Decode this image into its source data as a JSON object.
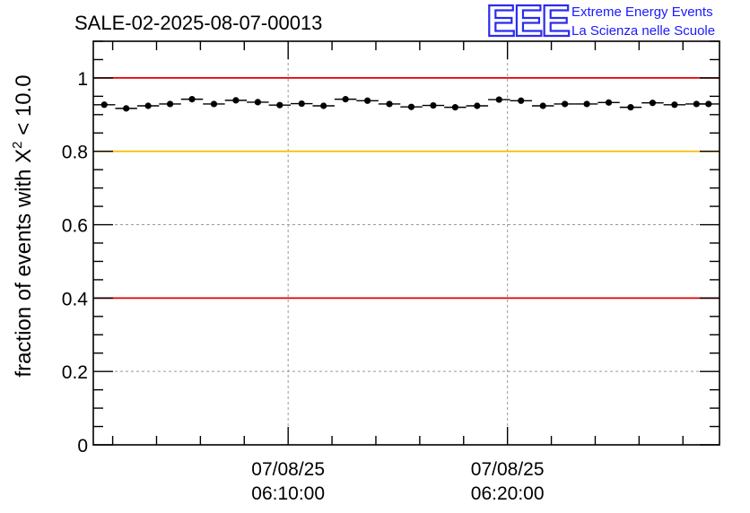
{
  "header": {
    "title": "SALE-02-2025-08-07-00013",
    "logo": {
      "mark": "EEE",
      "line1": "Extreme Energy Events",
      "line2": "La Scienza nelle Scuole",
      "color": "#1a1aff"
    }
  },
  "chart_data": {
    "type": "scatter",
    "title": "SALE-02-2025-08-07-00013",
    "xlabel": "",
    "ylabel": "fraction of events with χ² < 10.0",
    "ylabel_parts": {
      "prefix": "fraction of events with ",
      "symbol": "X",
      "exponent": "2",
      "suffix": " < 10.0"
    },
    "ylim": [
      0,
      1.1
    ],
    "xlim": [
      "2025-08-07T06:01:07",
      "2025-08-07T06:29:40"
    ],
    "grid": true,
    "y_ticks": [
      {
        "value": 0,
        "label": "0"
      },
      {
        "value": 0.2,
        "label": "0.2"
      },
      {
        "value": 0.4,
        "label": "0.4"
      },
      {
        "value": 0.6,
        "label": "0.6"
      },
      {
        "value": 0.8,
        "label": "0.8"
      },
      {
        "value": 1,
        "label": "1"
      }
    ],
    "x_ticks": [
      {
        "value": "2025-08-07T06:10:00",
        "label_date": "07/08/25",
        "label_time": "06:10:00"
      },
      {
        "value": "2025-08-07T06:20:00",
        "label_date": "07/08/25",
        "label_time": "06:20:00"
      }
    ],
    "reference_lines": [
      {
        "value": 1.0,
        "color": "#e00000"
      },
      {
        "value": 0.8,
        "color": "#f5c000"
      },
      {
        "value": 0.4,
        "color": "#e00000"
      }
    ],
    "point_color": "#000000",
    "series": [
      {
        "x": [
          "2025-08-07T06:01:37",
          "2025-08-07T06:02:37",
          "2025-08-07T06:03:37",
          "2025-08-07T06:04:37",
          "2025-08-07T06:05:37",
          "2025-08-07T06:06:37",
          "2025-08-07T06:07:37",
          "2025-08-07T06:08:37",
          "2025-08-07T06:09:37",
          "2025-08-07T06:10:37",
          "2025-08-07T06:11:37",
          "2025-08-07T06:12:37",
          "2025-08-07T06:13:37",
          "2025-08-07T06:14:37",
          "2025-08-07T06:15:37",
          "2025-08-07T06:16:37",
          "2025-08-07T06:17:37",
          "2025-08-07T06:18:37",
          "2025-08-07T06:19:37",
          "2025-08-07T06:20:37",
          "2025-08-07T06:21:37",
          "2025-08-07T06:22:37",
          "2025-08-07T06:23:37",
          "2025-08-07T06:24:37",
          "2025-08-07T06:25:37",
          "2025-08-07T06:26:37",
          "2025-08-07T06:27:37",
          "2025-08-07T06:28:37",
          "2025-08-07T06:29:10"
        ],
        "values": [
          0.927,
          0.917,
          0.924,
          0.929,
          0.942,
          0.929,
          0.939,
          0.934,
          0.926,
          0.93,
          0.924,
          0.942,
          0.938,
          0.929,
          0.921,
          0.925,
          0.92,
          0.924,
          0.941,
          0.938,
          0.924,
          0.929,
          0.929,
          0.933,
          0.92,
          0.932,
          0.927,
          0.929,
          0.929
        ]
      }
    ]
  }
}
